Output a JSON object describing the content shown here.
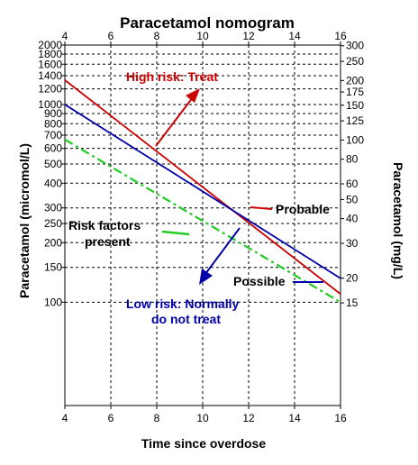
{
  "chart_data": {
    "type": "line",
    "title": "Paracetamol nomogram",
    "xlabel": "Time since overdose",
    "ylabel_left": "Paracetamol (micromol/L)",
    "ylabel_right": "Paracetamol (mg/L)",
    "xlim": [
      4,
      16
    ],
    "x_ticks": [
      4,
      6,
      8,
      10,
      12,
      14,
      16
    ],
    "y_scale": "log",
    "ylim_micromol": [
      30,
      2000
    ],
    "y_ticks_left": [
      2000,
      1800,
      1600,
      1400,
      1200,
      1000,
      900,
      800,
      700,
      600,
      500,
      400,
      300,
      250,
      200,
      150,
      100
    ],
    "y_ticks_right_mgL": [
      300,
      250,
      200,
      175,
      150,
      125,
      100,
      80,
      60,
      50,
      40,
      30,
      20,
      15
    ],
    "grid": true,
    "series": [
      {
        "name": "Probable",
        "color": "#cc0000",
        "style": "solid",
        "x": [
          4,
          16
        ],
        "y": [
          1330,
          110
        ]
      },
      {
        "name": "Possible",
        "color": "#0000aa",
        "style": "solid",
        "x": [
          4,
          16
        ],
        "y": [
          1000,
          132
        ]
      },
      {
        "name": "Risk factors present",
        "color": "#22cc22",
        "style": "dashdot",
        "x": [
          4,
          16
        ],
        "y": [
          665,
          100
        ]
      }
    ],
    "annotations": {
      "high_risk": "High risk: Treat",
      "probable": "Probable",
      "possible": "Possible",
      "risk_factors_line1": "Risk factors",
      "risk_factors_line2": "present",
      "low_risk_line1": "Low risk: Normally",
      "low_risk_line2": "do not treat"
    },
    "colors": {
      "red": "#cc0000",
      "blue": "#0000aa",
      "green": "#22cc22"
    }
  }
}
